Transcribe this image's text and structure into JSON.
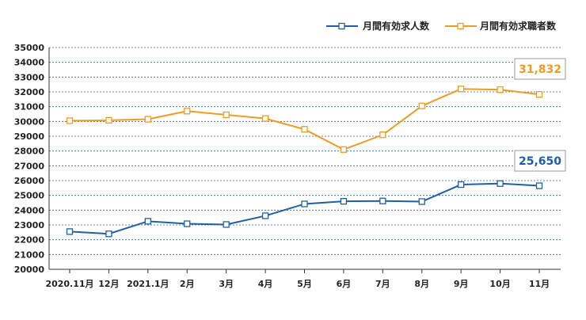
{
  "chart_data": {
    "type": "line",
    "categories": [
      "2020.11月",
      "12月",
      "2021.1月",
      "2月",
      "3月",
      "4月",
      "5月",
      "6月",
      "7月",
      "8月",
      "9月",
      "10月",
      "11月"
    ],
    "ylim": [
      20000,
      35000
    ],
    "ytick_step": 1000,
    "yticks": [
      "20000",
      "21000",
      "22000",
      "23000",
      "24000",
      "25000",
      "26000",
      "27000",
      "28000",
      "29000",
      "30000",
      "31000",
      "32000",
      "33000",
      "34000",
      "35000"
    ],
    "grid": true,
    "legend_position": "top-right",
    "series": [
      {
        "name": "月間有効求人数",
        "color": "#1d5ea8",
        "values": [
          22550,
          22400,
          23250,
          23080,
          23030,
          23620,
          24420,
          24600,
          24620,
          24580,
          25730,
          25800,
          25650
        ],
        "callout": "25,650"
      },
      {
        "name": "月間有効求職者数",
        "color": "#f29a1f",
        "values": [
          30050,
          30080,
          30150,
          30700,
          30450,
          30200,
          29470,
          28100,
          29100,
          31050,
          32200,
          32150,
          31832
        ],
        "callout": "31,832"
      }
    ]
  }
}
